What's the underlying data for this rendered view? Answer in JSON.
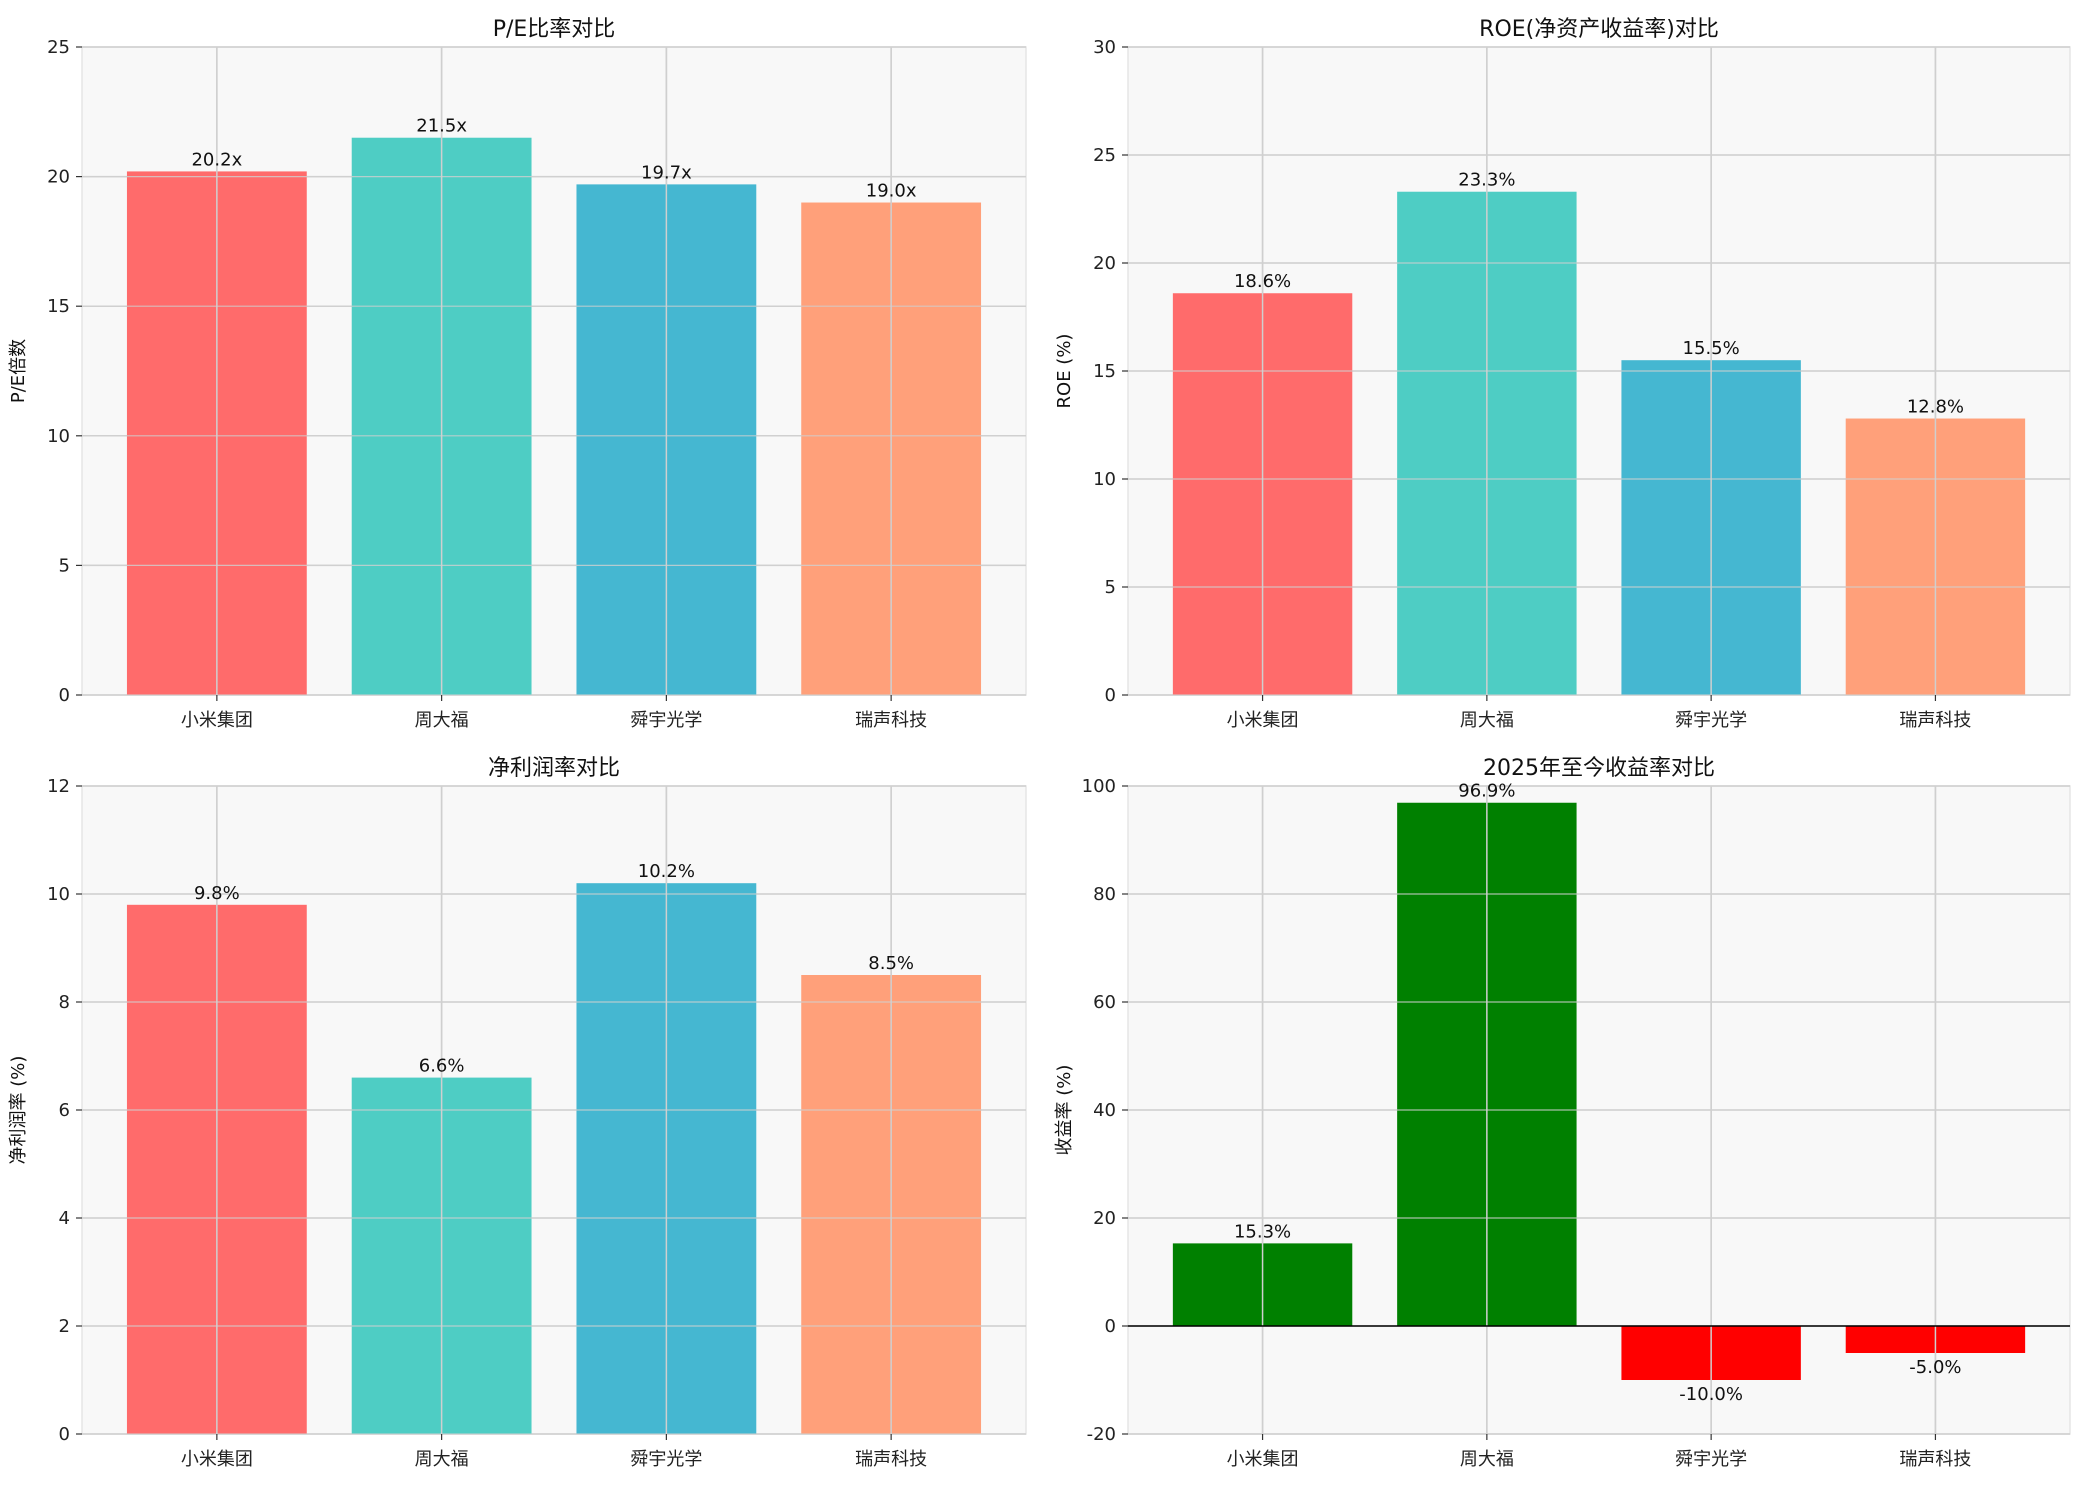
{
  "chart_data": [
    {
      "type": "bar",
      "title": "P/E比率对比",
      "ylabel": "P/E倍数",
      "xlabel": "",
      "categories": [
        "小米集团",
        "周大福",
        "舜宇光学",
        "瑞声科技"
      ],
      "values": [
        20.2,
        21.5,
        19.7,
        19.0
      ],
      "data_labels": [
        "20.2x",
        "21.5x",
        "19.7x",
        "19.0x"
      ],
      "colors": [
        "#FF6B6B",
        "#4ECDC4",
        "#45B7D1",
        "#FFA07A"
      ],
      "ylim": [
        0,
        25
      ],
      "yticks": [
        0,
        5,
        10,
        15,
        20,
        25
      ],
      "grid": true
    },
    {
      "type": "bar",
      "title": "ROE(净资产收益率)对比",
      "ylabel": "ROE (%)",
      "xlabel": "",
      "categories": [
        "小米集团",
        "周大福",
        "舜宇光学",
        "瑞声科技"
      ],
      "values": [
        18.6,
        23.3,
        15.5,
        12.8
      ],
      "data_labels": [
        "18.6%",
        "23.3%",
        "15.5%",
        "12.8%"
      ],
      "colors": [
        "#FF6B6B",
        "#4ECDC4",
        "#45B7D1",
        "#FFA07A"
      ],
      "ylim": [
        0,
        30
      ],
      "yticks": [
        0,
        5,
        10,
        15,
        20,
        25,
        30
      ],
      "grid": true
    },
    {
      "type": "bar",
      "title": "净利润率对比",
      "ylabel": "净利润率 (%)",
      "xlabel": "",
      "categories": [
        "小米集团",
        "周大福",
        "舜宇光学",
        "瑞声科技"
      ],
      "values": [
        9.8,
        6.6,
        10.2,
        8.5
      ],
      "data_labels": [
        "9.8%",
        "6.6%",
        "10.2%",
        "8.5%"
      ],
      "colors": [
        "#FF6B6B",
        "#4ECDC4",
        "#45B7D1",
        "#FFA07A"
      ],
      "ylim": [
        0,
        12
      ],
      "yticks": [
        0,
        2,
        4,
        6,
        8,
        10,
        12
      ],
      "grid": true
    },
    {
      "type": "bar",
      "title": "2025年至今收益率对比",
      "ylabel": "收益率 (%)",
      "xlabel": "",
      "categories": [
        "小米集团",
        "周大福",
        "舜宇光学",
        "瑞声科技"
      ],
      "values": [
        15.3,
        96.9,
        -10.0,
        -5.0
      ],
      "data_labels": [
        "15.3%",
        "96.9%",
        "-10.0%",
        "-5.0%"
      ],
      "colors": [
        "#008000",
        "#008000",
        "#FF0000",
        "#FF0000"
      ],
      "ylim": [
        -20,
        100
      ],
      "yticks": [
        -20,
        0,
        20,
        40,
        60,
        80,
        100
      ],
      "zero_line": true,
      "grid": true
    }
  ]
}
